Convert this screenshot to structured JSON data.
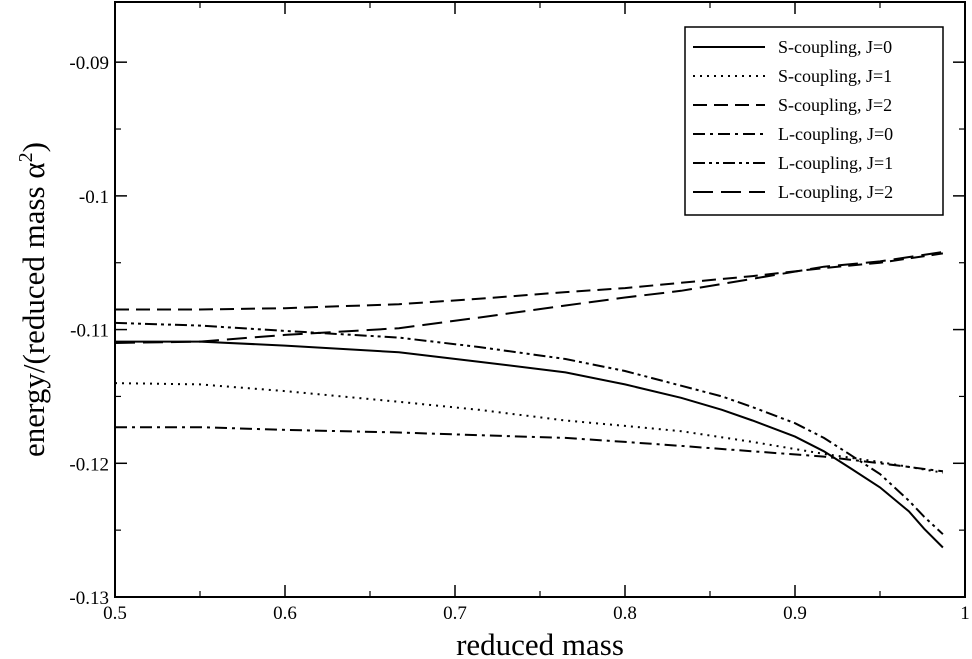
{
  "chart_data": {
    "type": "line",
    "title": "",
    "xlabel": "reduced mass",
    "ylabel_prefix": "energy/(reduced mass ",
    "ylabel_symbol": "α",
    "ylabel_exponent": "2",
    "ylabel_suffix": ")",
    "xlim": [
      0.5,
      1.0
    ],
    "ylim": [
      -0.13,
      -0.0855
    ],
    "grid": false,
    "legend_position": "top-right",
    "x_ticks": [
      {
        "value": 0.5,
        "label": "0.5"
      },
      {
        "value": 0.6,
        "label": "0.6"
      },
      {
        "value": 0.7,
        "label": "0.7"
      },
      {
        "value": 0.8,
        "label": "0.8"
      },
      {
        "value": 0.9,
        "label": "0.9"
      },
      {
        "value": 1.0,
        "label": "1"
      }
    ],
    "y_ticks": [
      {
        "value": -0.13,
        "label": "-0.13"
      },
      {
        "value": -0.12,
        "label": "-0.12"
      },
      {
        "value": -0.11,
        "label": "-0.11"
      },
      {
        "value": -0.1,
        "label": "-0.1"
      },
      {
        "value": -0.09,
        "label": "-0.09"
      }
    ],
    "x_minor_step": 0.05,
    "y_minor_step": 0.005,
    "series": [
      {
        "name": "S-coupling, J=0",
        "dash": "solid",
        "points": [
          [
            0.5,
            -0.1109
          ],
          [
            0.55,
            -0.1109
          ],
          [
            0.6,
            -0.1112
          ],
          [
            0.667,
            -0.1117
          ],
          [
            0.714,
            -0.1124
          ],
          [
            0.765,
            -0.1132
          ],
          [
            0.8,
            -0.1141
          ],
          [
            0.833,
            -0.1151
          ],
          [
            0.857,
            -0.116
          ],
          [
            0.875,
            -0.1168
          ],
          [
            0.9,
            -0.118
          ],
          [
            0.917,
            -0.1191
          ],
          [
            0.933,
            -0.1204
          ],
          [
            0.95,
            -0.1218
          ],
          [
            0.967,
            -0.1236
          ],
          [
            0.976,
            -0.1249
          ],
          [
            0.987,
            -0.1263
          ]
        ]
      },
      {
        "name": "S-coupling, J=1",
        "dash": "dotted",
        "points": [
          [
            0.5,
            -0.114
          ],
          [
            0.55,
            -0.1141
          ],
          [
            0.6,
            -0.1146
          ],
          [
            0.667,
            -0.1154
          ],
          [
            0.714,
            -0.116
          ],
          [
            0.765,
            -0.1168
          ],
          [
            0.8,
            -0.1172
          ],
          [
            0.833,
            -0.1176
          ],
          [
            0.875,
            -0.1184
          ],
          [
            0.917,
            -0.1193
          ],
          [
            0.95,
            -0.1199
          ],
          [
            0.987,
            -0.1207
          ]
        ]
      },
      {
        "name": "S-coupling, J=2",
        "dash": "dashed",
        "points": [
          [
            0.5,
            -0.1085
          ],
          [
            0.55,
            -0.1085
          ],
          [
            0.6,
            -0.1084
          ],
          [
            0.667,
            -0.1081
          ],
          [
            0.714,
            -0.1077
          ],
          [
            0.765,
            -0.1072
          ],
          [
            0.8,
            -0.1069
          ],
          [
            0.833,
            -0.1065
          ],
          [
            0.875,
            -0.106
          ],
          [
            0.917,
            -0.1054
          ],
          [
            0.95,
            -0.105
          ],
          [
            0.987,
            -0.1043
          ]
        ]
      },
      {
        "name": "L-coupling, J=0",
        "dash": "dashdot",
        "points": [
          [
            0.5,
            -0.1173
          ],
          [
            0.55,
            -0.1173
          ],
          [
            0.6,
            -0.1175
          ],
          [
            0.667,
            -0.1177
          ],
          [
            0.714,
            -0.1179
          ],
          [
            0.765,
            -0.1181
          ],
          [
            0.8,
            -0.1184
          ],
          [
            0.833,
            -0.1187
          ],
          [
            0.875,
            -0.1191
          ],
          [
            0.917,
            -0.1195
          ],
          [
            0.95,
            -0.12
          ],
          [
            0.987,
            -0.1206
          ]
        ]
      },
      {
        "name": "L-coupling, J=1",
        "dash": "dashdotdot",
        "points": [
          [
            0.5,
            -0.1095
          ],
          [
            0.55,
            -0.1097
          ],
          [
            0.6,
            -0.1101
          ],
          [
            0.667,
            -0.1106
          ],
          [
            0.714,
            -0.1113
          ],
          [
            0.765,
            -0.1122
          ],
          [
            0.8,
            -0.1131
          ],
          [
            0.833,
            -0.1142
          ],
          [
            0.857,
            -0.115
          ],
          [
            0.875,
            -0.1158
          ],
          [
            0.9,
            -0.117
          ],
          [
            0.917,
            -0.1181
          ],
          [
            0.933,
            -0.1194
          ],
          [
            0.95,
            -0.1208
          ],
          [
            0.967,
            -0.1228
          ],
          [
            0.976,
            -0.124
          ],
          [
            0.987,
            -0.1253
          ]
        ]
      },
      {
        "name": "L-coupling, J=2",
        "dash": "longdash",
        "points": [
          [
            0.5,
            -0.111
          ],
          [
            0.55,
            -0.1109
          ],
          [
            0.6,
            -0.1104
          ],
          [
            0.667,
            -0.1099
          ],
          [
            0.714,
            -0.1091
          ],
          [
            0.765,
            -0.1082
          ],
          [
            0.8,
            -0.1076
          ],
          [
            0.833,
            -0.1071
          ],
          [
            0.875,
            -0.1062
          ],
          [
            0.917,
            -0.1053
          ],
          [
            0.95,
            -0.1049
          ],
          [
            0.987,
            -0.1042
          ]
        ]
      }
    ]
  }
}
